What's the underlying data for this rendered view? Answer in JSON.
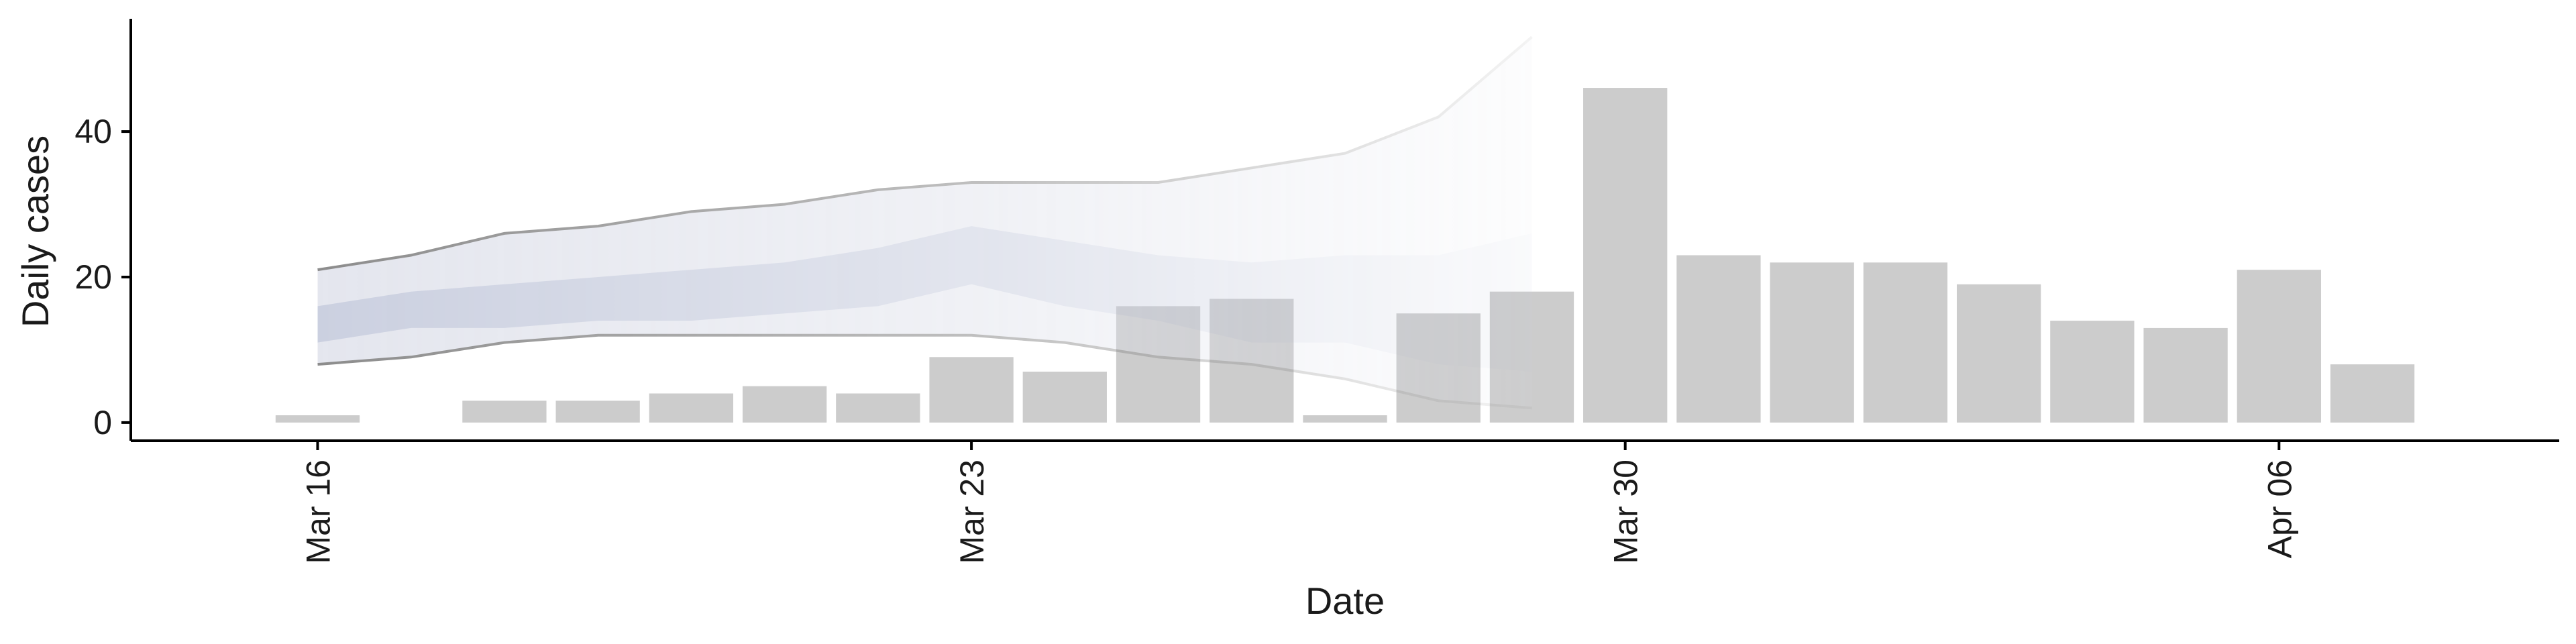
{
  "chart_data": {
    "type": "bar",
    "xlabel": "Date",
    "ylabel": "Daily cases",
    "x_ticks": [
      {
        "date": "2020-03-16",
        "label": "Mar 16"
      },
      {
        "date": "2020-03-23",
        "label": "Mar 23"
      },
      {
        "date": "2020-03-30",
        "label": "Mar 30"
      },
      {
        "date": "2020-04-06",
        "label": "Apr 06"
      }
    ],
    "y_ticks": [
      0,
      20,
      40
    ],
    "ylim": [
      -2.5,
      55.5
    ],
    "xlim": [
      "2020-03-14",
      "2020-04-09"
    ],
    "bars": {
      "dates": [
        "2020-03-16",
        "2020-03-17",
        "2020-03-18",
        "2020-03-19",
        "2020-03-20",
        "2020-03-21",
        "2020-03-22",
        "2020-03-23",
        "2020-03-24",
        "2020-03-25",
        "2020-03-26",
        "2020-03-27",
        "2020-03-28",
        "2020-03-29",
        "2020-03-30",
        "2020-03-31",
        "2020-04-01",
        "2020-04-02",
        "2020-04-03",
        "2020-04-04",
        "2020-04-05",
        "2020-04-06",
        "2020-04-07"
      ],
      "values": [
        1,
        0,
        3,
        3,
        4,
        5,
        4,
        9,
        7,
        16,
        17,
        1,
        15,
        18,
        46,
        23,
        22,
        22,
        19,
        14,
        13,
        21,
        8
      ]
    },
    "forecast": {
      "dates": [
        "2020-03-16",
        "2020-03-17",
        "2020-03-18",
        "2020-03-19",
        "2020-03-20",
        "2020-03-21",
        "2020-03-22",
        "2020-03-23",
        "2020-03-24",
        "2020-03-25",
        "2020-03-26",
        "2020-03-27",
        "2020-03-28",
        "2020-03-29"
      ],
      "outer_upper": [
        21,
        23,
        26,
        27,
        29,
        30,
        32,
        33,
        33,
        33,
        35,
        37,
        42,
        53
      ],
      "outer_lower": [
        8,
        9,
        11,
        12,
        12,
        12,
        12,
        12,
        11,
        9,
        8,
        6,
        3,
        2
      ],
      "inner_upper": [
        16,
        18,
        19,
        20,
        21,
        22,
        24,
        27,
        25,
        23,
        22,
        23,
        23,
        26
      ],
      "inner_lower": [
        11,
        13,
        13,
        14,
        14,
        15,
        16,
        19,
        16,
        14,
        11,
        11,
        8,
        7
      ]
    },
    "colors": {
      "bars": "#cccccc",
      "outer_band": "#dde0ea",
      "inner_band": "#c5cbdd",
      "outer_lines": "#8c8c8c",
      "axis": "#000000"
    }
  }
}
